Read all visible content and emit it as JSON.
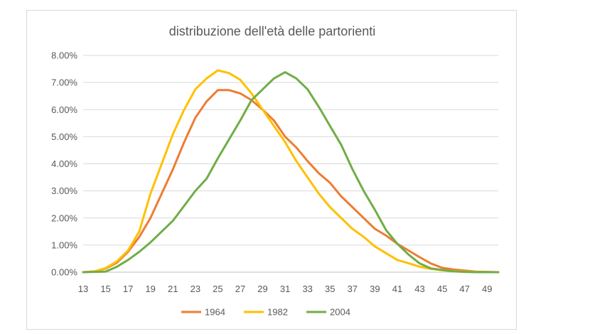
{
  "chart_data": {
    "type": "line",
    "title": "distribuzione dell'età delle partorienti",
    "xlabel": "",
    "ylabel": "",
    "x": [
      13,
      14,
      15,
      16,
      17,
      18,
      19,
      20,
      21,
      22,
      23,
      24,
      25,
      26,
      27,
      28,
      29,
      30,
      31,
      32,
      33,
      34,
      35,
      36,
      37,
      38,
      39,
      40,
      41,
      42,
      43,
      44,
      45,
      46,
      47,
      48,
      49,
      50
    ],
    "x_tick_labels": [
      "13",
      "15",
      "17",
      "19",
      "21",
      "23",
      "25",
      "27",
      "29",
      "31",
      "33",
      "35",
      "37",
      "39",
      "41",
      "43",
      "45",
      "47",
      "49"
    ],
    "xlim": [
      13,
      50
    ],
    "ylim": [
      0,
      0.08
    ],
    "y_tick_labels": [
      "0.00%",
      "1.00%",
      "2.00%",
      "3.00%",
      "4.00%",
      "5.00%",
      "6.00%",
      "7.00%",
      "8.00%"
    ],
    "grid": true,
    "legend_position": "bottom",
    "series": [
      {
        "name": "1964",
        "color": "#ed7d31",
        "values": [
          0.0,
          0.0003,
          0.0013,
          0.0035,
          0.0075,
          0.013,
          0.02,
          0.029,
          0.038,
          0.048,
          0.057,
          0.063,
          0.0672,
          0.0672,
          0.066,
          0.0635,
          0.06,
          0.056,
          0.05,
          0.046,
          0.041,
          0.0365,
          0.033,
          0.028,
          0.024,
          0.02,
          0.016,
          0.0135,
          0.0105,
          0.008,
          0.0055,
          0.0032,
          0.0016,
          0.001,
          0.0006,
          0.0002,
          0.0001,
          0.0
        ]
      },
      {
        "name": "1982",
        "color": "#ffc000",
        "values": [
          0.0,
          0.0003,
          0.0015,
          0.004,
          0.008,
          0.015,
          0.029,
          0.04,
          0.051,
          0.06,
          0.0675,
          0.0715,
          0.0745,
          0.0735,
          0.071,
          0.066,
          0.06,
          0.054,
          0.048,
          0.041,
          0.035,
          0.029,
          0.024,
          0.02,
          0.016,
          0.013,
          0.0095,
          0.007,
          0.0045,
          0.0033,
          0.002,
          0.0012,
          0.0007,
          0.0004,
          0.0002,
          0.0001,
          0.0,
          0.0
        ]
      },
      {
        "name": "2004",
        "color": "#70ad47",
        "values": [
          0.0,
          0.0001,
          0.0002,
          0.002,
          0.0045,
          0.0075,
          0.011,
          0.015,
          0.019,
          0.0245,
          0.03,
          0.0345,
          0.042,
          0.049,
          0.056,
          0.0635,
          0.0675,
          0.0715,
          0.0738,
          0.0715,
          0.0675,
          0.061,
          0.054,
          0.047,
          0.038,
          0.03,
          0.023,
          0.0155,
          0.0105,
          0.0065,
          0.0032,
          0.0014,
          0.0008,
          0.0003,
          0.0001,
          0.0,
          0.0,
          0.0
        ]
      }
    ]
  }
}
